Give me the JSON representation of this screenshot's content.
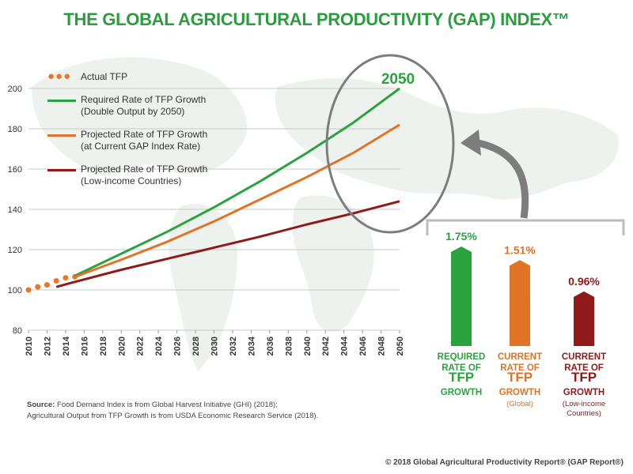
{
  "title": "THE GLOBAL AGRICULTURAL PRODUCTIVITY (GAP) INDEX™",
  "colors": {
    "required": "#2aa33f",
    "projected": "#e07326",
    "low_income": "#8e1a1a",
    "actual": "#e8772c",
    "arrow": "#7d7d7d"
  },
  "callout_label": "2050",
  "legend": [
    {
      "line1": "Actual TFP",
      "line2": ""
    },
    {
      "line1": "Required Rate of TFP Growth",
      "line2": "(Double Output by 2050)"
    },
    {
      "line1": "Projected Rate of TFP Growth",
      "line2": "(at Current GAP Index Rate)"
    },
    {
      "line1": "Projected Rate of TFP Growth",
      "line2": "(Low-income Countries)"
    }
  ],
  "source": {
    "prefix": "Source:",
    "line1": "Food Demand Index is from Global Harvest Initiative (GHI) (2018);",
    "line2": "Agricultural Output from TFP Growth is from USDA Economic Research Service (2018)."
  },
  "copyright": "© 2018 Global Agricultural Productivity Report® (GAP Report®)",
  "chart_data": [
    {
      "type": "line",
      "title": "",
      "xlabel": "",
      "ylabel": "",
      "xlim": [
        2010,
        2050
      ],
      "ylim": [
        80,
        200
      ],
      "yticks": [
        80,
        100,
        120,
        140,
        160,
        180,
        200
      ],
      "xticks": [
        2010,
        2012,
        2014,
        2016,
        2018,
        2020,
        2022,
        2024,
        2026,
        2028,
        2030,
        2032,
        2034,
        2036,
        2038,
        2040,
        2042,
        2044,
        2046,
        2048,
        2050
      ],
      "series": [
        {
          "name": "Actual TFP",
          "style": "dots",
          "x": [
            2010,
            2011,
            2012,
            2013,
            2014,
            2015
          ],
          "y": [
            100,
            101.5,
            102.5,
            104.5,
            106,
            106.5
          ]
        },
        {
          "name": "Required Rate of TFP Growth (Double Output by 2050)",
          "x": [
            2015,
            2020,
            2025,
            2030,
            2035,
            2040,
            2045,
            2050
          ],
          "y": [
            107,
            118,
            129,
            141,
            154,
            168,
            183,
            200
          ]
        },
        {
          "name": "Projected Rate of TFP Growth (at Current GAP Index Rate)",
          "x": [
            2015,
            2020,
            2025,
            2030,
            2035,
            2040,
            2045,
            2050
          ],
          "y": [
            106.5,
            115,
            124,
            134,
            145,
            156,
            168,
            182
          ]
        },
        {
          "name": "Projected Rate of TFP Growth (Low-income Countries)",
          "x": [
            2013,
            2015,
            2020,
            2025,
            2030,
            2035,
            2040,
            2045,
            2050
          ],
          "y": [
            101.5,
            104,
            110,
            115.5,
            121,
            126.5,
            132.5,
            138,
            144
          ]
        }
      ]
    },
    {
      "type": "bar",
      "title": "",
      "series": [
        {
          "name": "REQUIRED RATE OF TFP GROWTH",
          "value": 1.75,
          "label": "1.75%",
          "lines": [
            "REQUIRED",
            "RATE OF",
            "TFP",
            "GROWTH"
          ],
          "note": ""
        },
        {
          "name": "CURRENT RATE OF TFP GROWTH (Global)",
          "value": 1.51,
          "label": "1.51%",
          "lines": [
            "CURRENT",
            "RATE OF",
            "TFP",
            "GROWTH"
          ],
          "note": "(Global)"
        },
        {
          "name": "CURRENT RATE OF TFP GROWTH (Low-income Countries)",
          "value": 0.96,
          "label": "0.96%",
          "lines": [
            "CURRENT",
            "RATE OF",
            "TFP",
            "GROWTH"
          ],
          "note": "(Low-income Countries)"
        }
      ]
    }
  ]
}
